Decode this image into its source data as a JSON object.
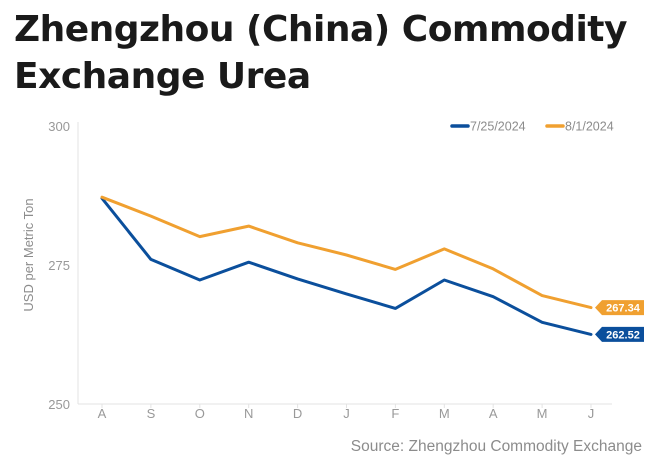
{
  "chart_data": {
    "type": "line",
    "title": "Zhengzhou (China) Commodity Exchange Urea",
    "title_lines": [
      "Zhengzhou (China) Commodity",
      "Exchange Urea"
    ],
    "ylabel": "USD per Metric Ton",
    "xlabel": "",
    "ylim": [
      250,
      300
    ],
    "yticks": [
      250,
      275,
      300
    ],
    "categories": [
      "A",
      "S",
      "O",
      "N",
      "D",
      "J",
      "F",
      "M",
      "A",
      "M",
      "J"
    ],
    "series": [
      {
        "name": "7/25/2024",
        "color": "#0b4f9c",
        "values": [
          287.0,
          276.0,
          272.3,
          275.5,
          272.5,
          269.8,
          267.2,
          272.3,
          269.3,
          264.7,
          262.52
        ],
        "end_label": "262.52"
      },
      {
        "name": "8/1/2024",
        "color": "#f0a030",
        "values": [
          287.2,
          283.8,
          280.1,
          282.0,
          279.0,
          276.8,
          274.2,
          277.9,
          274.3,
          269.5,
          267.34
        ],
        "end_label": "267.34"
      }
    ],
    "legend_position": "top-right",
    "grid": false,
    "source": "Source: Zhengzhou Commodity Exchange"
  }
}
